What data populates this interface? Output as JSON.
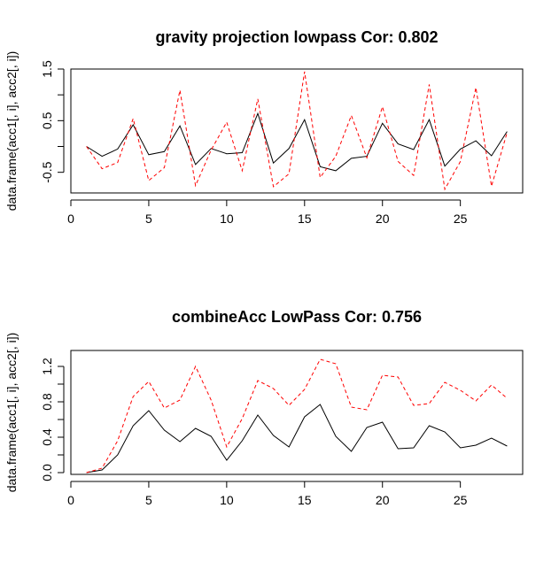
{
  "chart_data": [
    {
      "type": "line",
      "title": "gravity projection lowpass Cor: 0.802",
      "xlabel": "",
      "ylabel": "data.frame(acc1[, i], acc2[, i])",
      "xlim": [
        0,
        29
      ],
      "ylim": [
        -0.9,
        1.5
      ],
      "xticks": [
        0,
        5,
        10,
        15,
        20,
        25
      ],
      "yticks": [
        -0.5,
        0.5,
        1.5
      ],
      "yticks_minor": [
        -0.5,
        0.0,
        0.5,
        1.0,
        1.5
      ],
      "x": [
        1,
        2,
        3,
        4,
        5,
        6,
        7,
        8,
        9,
        10,
        11,
        12,
        13,
        14,
        15,
        16,
        17,
        18,
        19,
        20,
        21,
        22,
        23,
        24,
        25,
        26,
        27,
        28
      ],
      "series": [
        {
          "color": "#000000",
          "dash": "solid",
          "values": [
            0.0,
            -0.19,
            -0.05,
            0.42,
            -0.16,
            -0.1,
            0.4,
            -0.35,
            -0.04,
            -0.14,
            -0.12,
            0.64,
            -0.32,
            -0.04,
            0.52,
            -0.39,
            -0.47,
            -0.23,
            -0.19,
            0.45,
            0.05,
            -0.06,
            0.52,
            -0.38,
            -0.05,
            0.11,
            -0.18,
            0.29
          ]
        },
        {
          "color": "#ff0000",
          "dash": "dashed",
          "values": [
            0.0,
            -0.43,
            -0.31,
            0.54,
            -0.66,
            -0.41,
            1.09,
            -0.76,
            -0.07,
            0.47,
            -0.47,
            0.92,
            -0.78,
            -0.53,
            1.45,
            -0.6,
            -0.19,
            0.6,
            -0.22,
            0.77,
            -0.29,
            -0.56,
            1.2,
            -0.83,
            -0.29,
            1.14,
            -0.77,
            0.27
          ]
        }
      ]
    },
    {
      "type": "line",
      "title": "combineAcc LowPass Cor: 0.756",
      "xlabel": "",
      "ylabel": "data.frame(acc1[, i], acc2[, i])",
      "xlim": [
        0,
        29
      ],
      "ylim": [
        -0.02,
        1.38
      ],
      "xticks": [
        0,
        5,
        10,
        15,
        20,
        25
      ],
      "yticks": [
        0.0,
        0.4,
        0.8,
        1.2
      ],
      "yticks_minor": [
        0.0,
        0.2,
        0.4,
        0.6,
        0.8,
        1.0,
        1.2
      ],
      "x": [
        1,
        2,
        3,
        4,
        5,
        6,
        7,
        8,
        9,
        10,
        11,
        12,
        13,
        14,
        15,
        16,
        17,
        18,
        19,
        20,
        21,
        22,
        23,
        24,
        25,
        26,
        27,
        28
      ],
      "series": [
        {
          "color": "#000000",
          "dash": "solid",
          "values": [
            0.0,
            0.03,
            0.2,
            0.53,
            0.7,
            0.48,
            0.35,
            0.5,
            0.41,
            0.14,
            0.36,
            0.65,
            0.42,
            0.29,
            0.63,
            0.77,
            0.41,
            0.24,
            0.51,
            0.57,
            0.27,
            0.28,
            0.53,
            0.46,
            0.28,
            0.31,
            0.39,
            0.3
          ]
        },
        {
          "color": "#ff0000",
          "dash": "dashed",
          "values": [
            0.0,
            0.05,
            0.36,
            0.86,
            1.03,
            0.73,
            0.82,
            1.2,
            0.82,
            0.29,
            0.61,
            1.04,
            0.95,
            0.76,
            0.94,
            1.28,
            1.23,
            0.74,
            0.71,
            1.1,
            1.08,
            0.76,
            0.78,
            1.02,
            0.93,
            0.81,
            0.99,
            0.84
          ]
        }
      ]
    }
  ]
}
